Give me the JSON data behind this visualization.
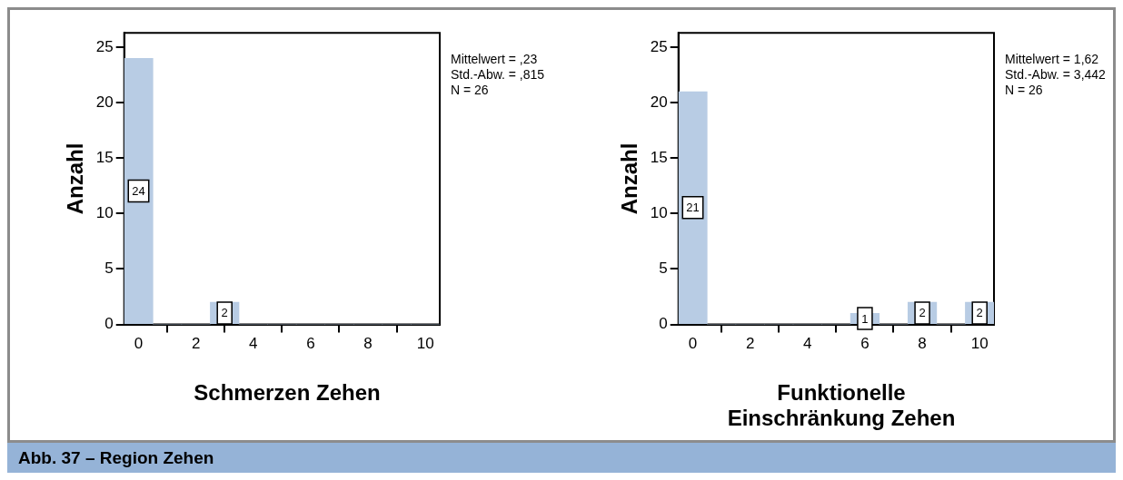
{
  "chart_data": [
    {
      "type": "histogram",
      "xlabel": "Schmerzen Zehen",
      "ylabel": "Anzahl",
      "bins": [
        -0.5,
        0.5,
        1.5,
        2.5,
        3.5,
        4.5,
        5.5,
        6.5,
        7.5,
        8.5,
        9.5,
        10.5
      ],
      "values": [
        24,
        0,
        0,
        2,
        0,
        0,
        0,
        0,
        0,
        0,
        0
      ],
      "value_labels": [
        "24",
        null,
        null,
        "2",
        null,
        null,
        null,
        null,
        null,
        null,
        null
      ],
      "color": "#b8cce4",
      "xlim": [
        -0.5,
        10.5
      ],
      "xticks": [
        0,
        2,
        4,
        6,
        8,
        10
      ],
      "ylim": [
        0,
        26.3
      ],
      "yticks": [
        0,
        5,
        10,
        15,
        20,
        25
      ],
      "annotations": [
        "Mittelwert = ,23",
        "Std.-Abw. = ,815",
        "N = 26"
      ]
    },
    {
      "type": "histogram",
      "xlabel": "Funktionelle Einschränkung Zehen",
      "ylabel": "Anzahl",
      "bins": [
        -0.5,
        0.5,
        1.5,
        2.5,
        3.5,
        4.5,
        5.5,
        6.5,
        7.5,
        8.5,
        9.5,
        10.5
      ],
      "values": [
        21,
        0,
        0,
        0,
        0,
        0,
        1,
        0,
        2,
        0,
        2
      ],
      "value_labels": [
        "21",
        null,
        null,
        null,
        null,
        null,
        "1",
        null,
        "2",
        null,
        "2"
      ],
      "color": "#b8cce4",
      "xlim": [
        -0.5,
        10.5
      ],
      "xticks": [
        0,
        2,
        4,
        6,
        8,
        10
      ],
      "ylim": [
        0,
        26.3
      ],
      "yticks": [
        0,
        5,
        10,
        15,
        20,
        25
      ],
      "annotations": [
        "Mittelwert = 1,62",
        "Std.-Abw. = 3,442",
        "N = 26"
      ]
    },
    {
      "type": "other",
      "title": "Abb. 37 – Region Zehen"
    }
  ]
}
